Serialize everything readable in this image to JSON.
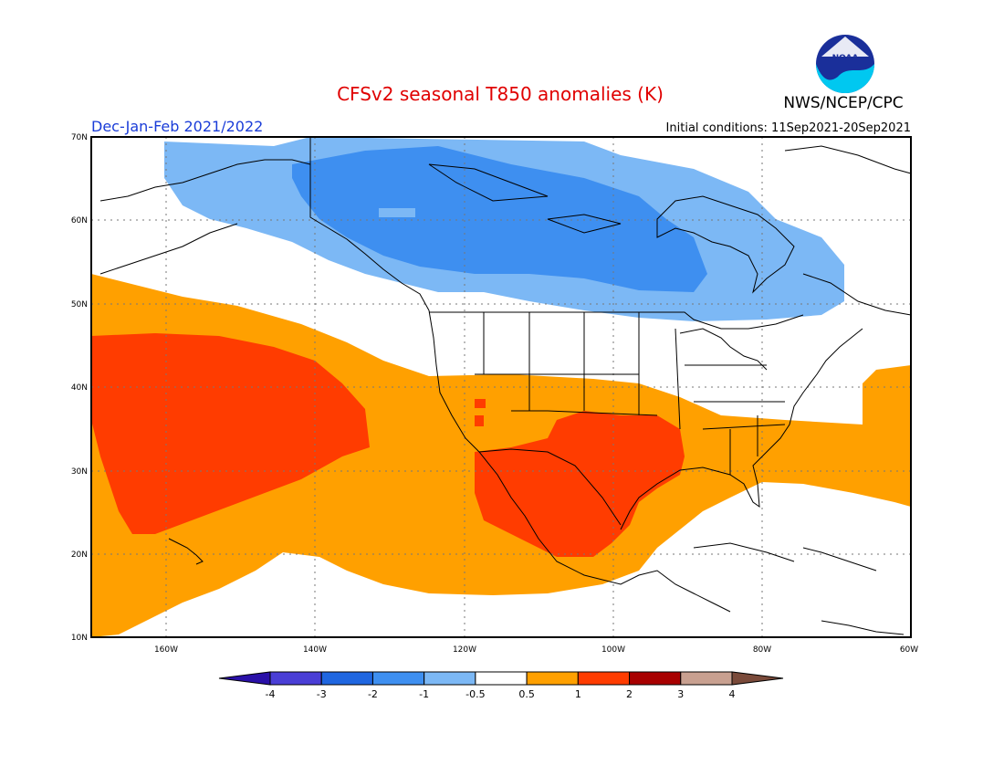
{
  "title": "CFSv2 seasonal T850 anomalies (K)",
  "season": "Dec-Jan-Feb 2021/2022",
  "initial_conditions": "Initial conditions: 11Sep2021-20Sep2021",
  "agency": "NWS/NCEP/CPC",
  "logo_text": "NOAA",
  "lon_labels": [
    "160W",
    "140W",
    "120W",
    "100W",
    "80W",
    "60W"
  ],
  "lat_labels": [
    "70N",
    "60N",
    "50N",
    "40N",
    "30N",
    "20N",
    "10N"
  ],
  "colors": {
    "title": "#e00000",
    "season": "#1a3cd8",
    "frame": "#000000",
    "coast": "#000000",
    "grid": "#777777"
  },
  "legend": {
    "labels": [
      "-4",
      "-3",
      "-2",
      "-1",
      "-0.5",
      "0.5",
      "1",
      "2",
      "3",
      "4"
    ],
    "colors": [
      "#2a10a8",
      "#4a3ed6",
      "#1f66e0",
      "#3e8ff0",
      "#7cb8f5",
      "#ffffff",
      "#ffa000",
      "#ff3c00",
      "#a80000",
      "#c8a090",
      "#7a4a3a"
    ]
  },
  "anomaly_regions": [
    {
      "name": "cold-light",
      "value": -0.75,
      "color": "#7cb8f5"
    },
    {
      "name": "cold-mid",
      "value": -1.5,
      "color": "#3e8ff0"
    },
    {
      "name": "warm-light",
      "value": 0.75,
      "color": "#ffa000"
    },
    {
      "name": "warm-mid",
      "value": 1.5,
      "color": "#ff3c00"
    }
  ]
}
